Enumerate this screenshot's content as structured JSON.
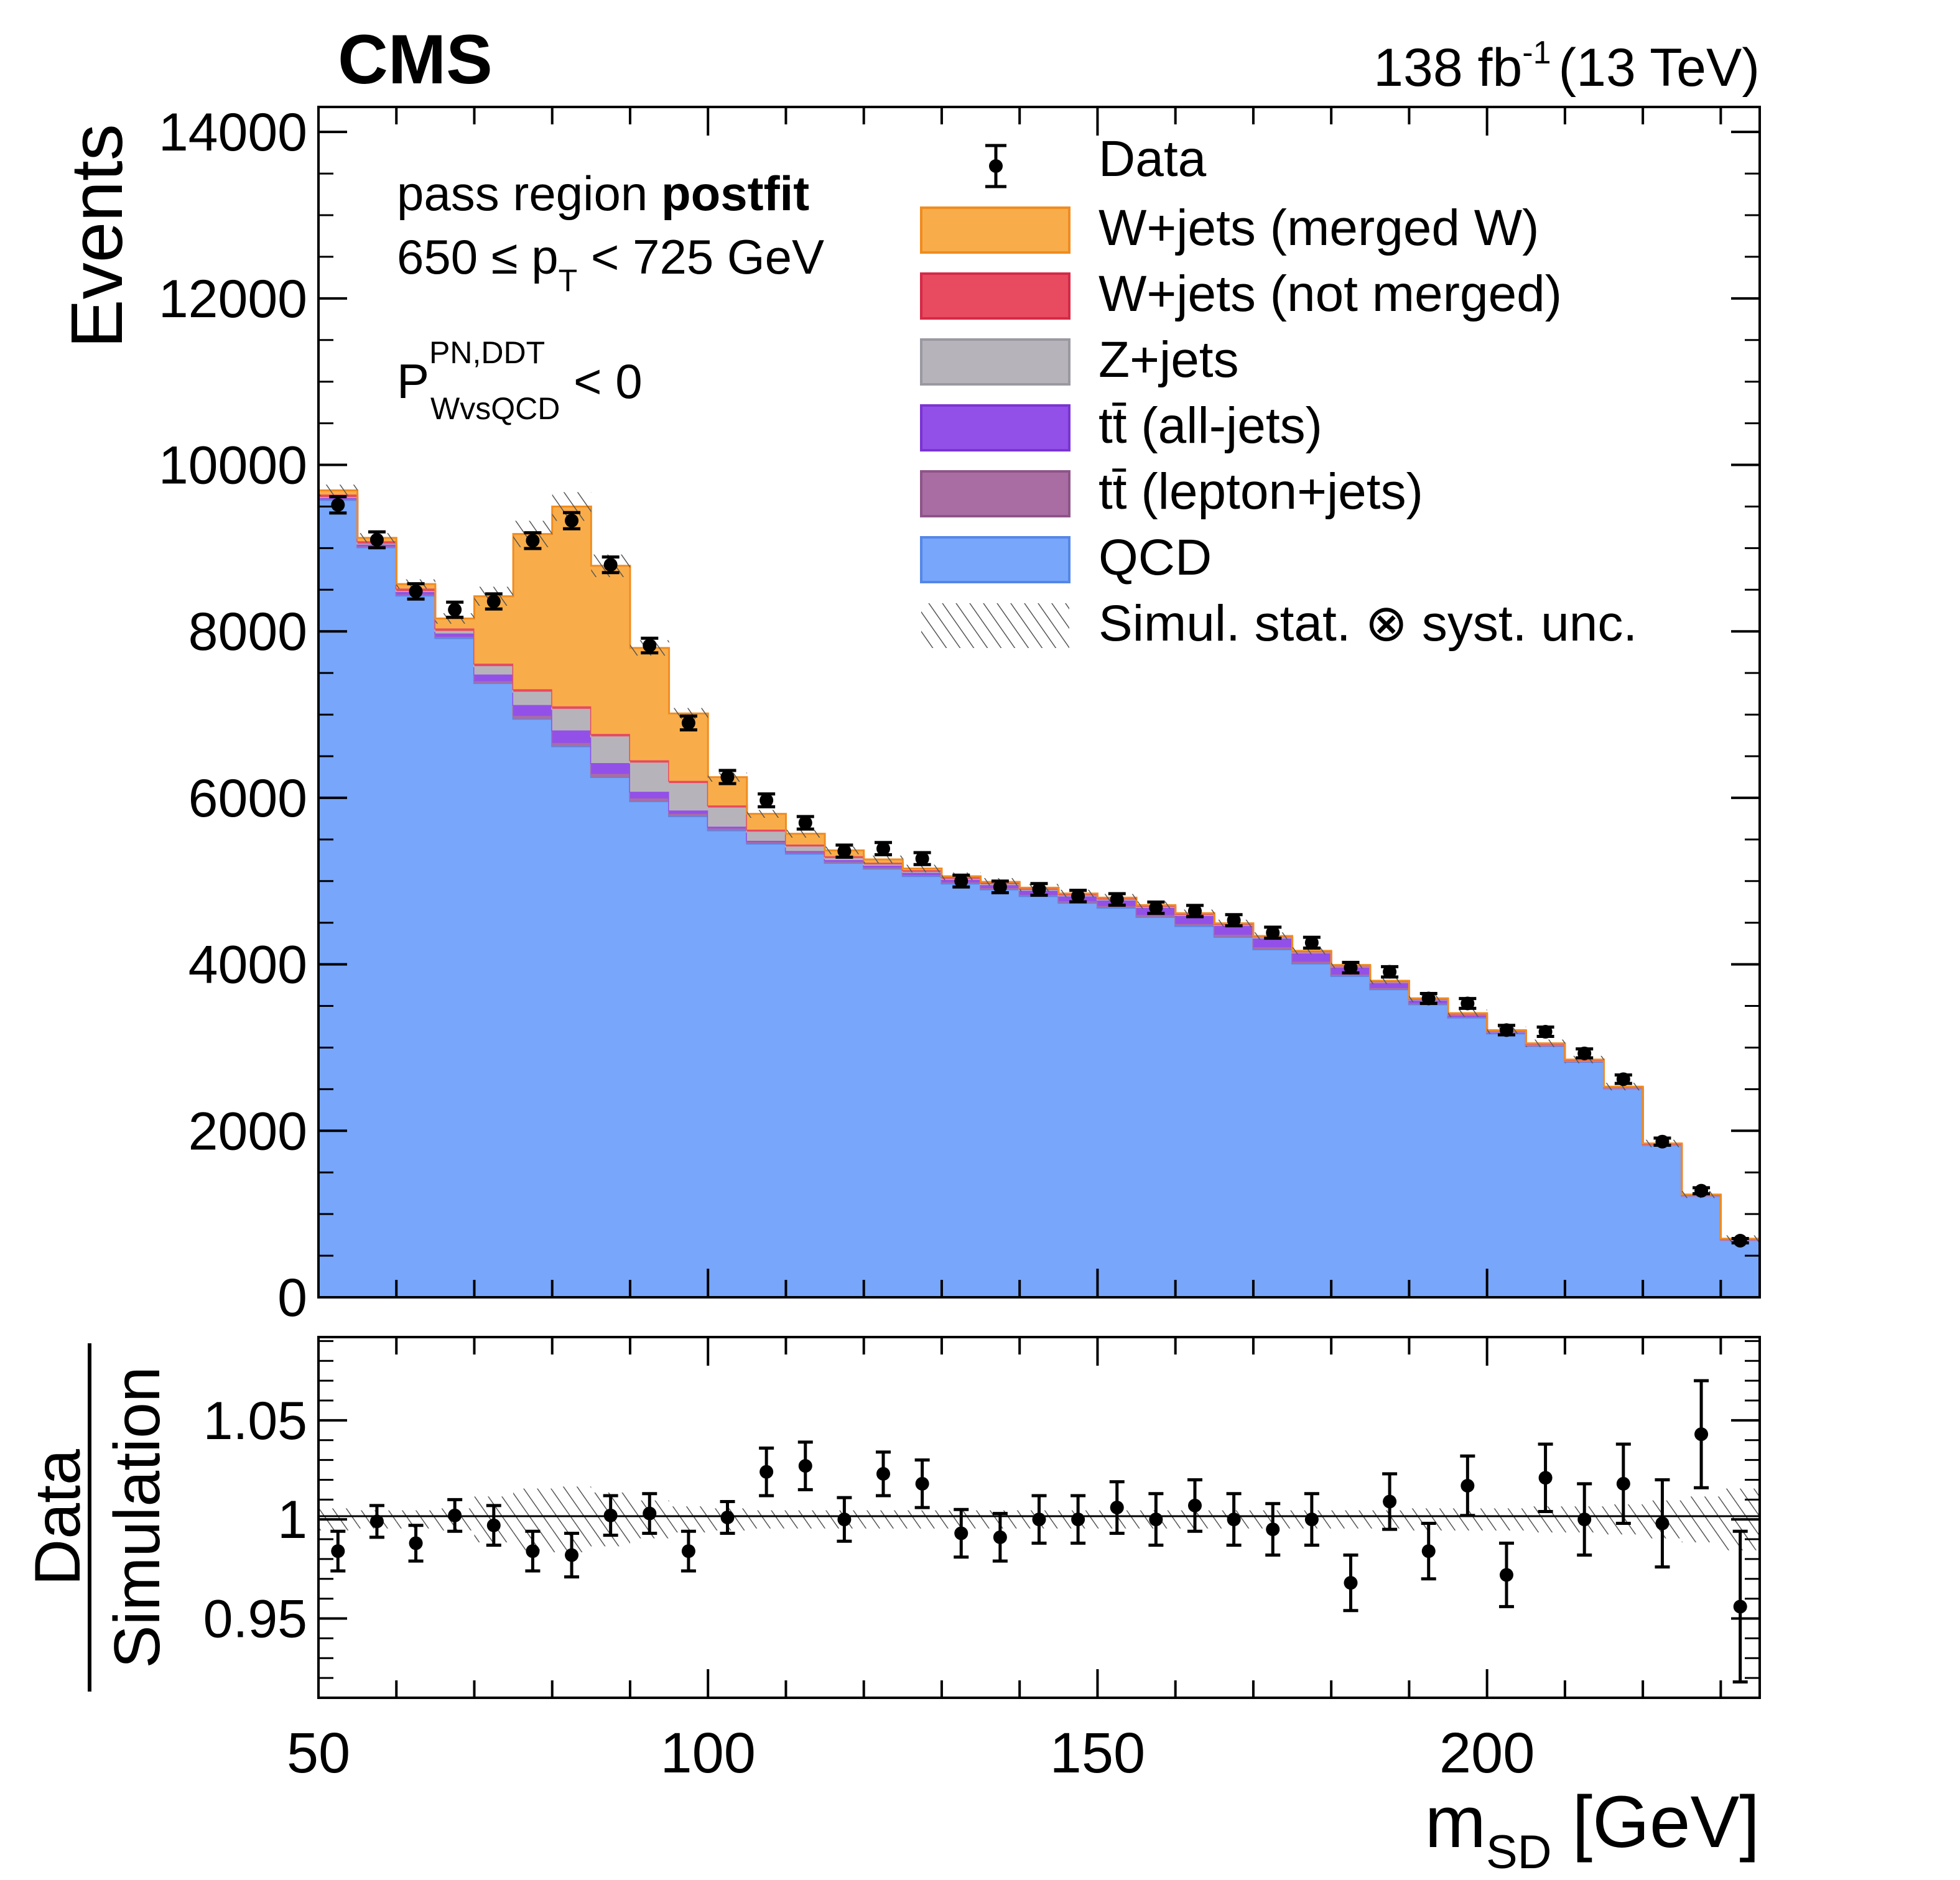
{
  "header": {
    "experiment": "CMS",
    "lumi_value": "138 fb",
    "lumi_exp": "-1",
    "energy": "(13 TeV)"
  },
  "annotations": {
    "region_prefix": "pass region ",
    "region_bold": "postfit",
    "pt_a": "650 ≤ p",
    "pt_sub": "T",
    "pt_b": " < 725 GeV",
    "tagger_main": "P",
    "tagger_sup": "PN,DDT",
    "tagger_sub": "WvsQCD",
    "tagger_cut": " < 0"
  },
  "colors": {
    "qcd": "#77a6fb",
    "qcd_edge": "#5587e6",
    "tt_lep": "#a96da3",
    "tt_had": "#9350e8",
    "zjets": "#b6b4ba",
    "w_unmerged": "#e84a5f",
    "w_merged": "#f8ad4a",
    "w_merged_edge": "#f08c20"
  },
  "chart_data": [
    {
      "type": "bar",
      "stacked": true,
      "title": "",
      "ylabel": "Events",
      "xlabel": "",
      "xlim": [
        50,
        235
      ],
      "ylim": [
        0,
        14300
      ],
      "yticks": [
        0,
        2000,
        4000,
        6000,
        8000,
        10000,
        12000,
        14000
      ],
      "ytick_labels": [
        "0",
        "2000",
        "4000",
        "6000",
        "8000",
        "10000",
        "12000",
        "14000"
      ],
      "bin_edges": [
        50,
        55,
        60,
        65,
        70,
        75,
        80,
        85,
        90,
        95,
        100,
        105,
        110,
        115,
        120,
        125,
        130,
        135,
        140,
        145,
        150,
        155,
        160,
        165,
        170,
        175,
        180,
        185,
        190,
        195,
        200,
        205,
        210,
        215,
        220,
        225,
        230,
        235
      ],
      "series": [
        {
          "name": "QCD",
          "color_key": "qcd",
          "values": [
            9580,
            9010,
            8430,
            7920,
            7380,
            6950,
            6620,
            6250,
            5960,
            5780,
            5610,
            5450,
            5330,
            5220,
            5150,
            5060,
            4970,
            4900,
            4820,
            4740,
            4680,
            4570,
            4460,
            4330,
            4180,
            4010,
            3860,
            3700,
            3520,
            3360,
            3170,
            3020,
            2830,
            2510,
            1830,
            1220,
            690
          ]
        },
        {
          "name": "tt̄ (lepton+jets)",
          "color_key": "tt_lep",
          "values": [
            8,
            10,
            12,
            15,
            22,
            35,
            40,
            38,
            33,
            28,
            22,
            18,
            15,
            14,
            13,
            13,
            14,
            15,
            16,
            18,
            20,
            22,
            25,
            26,
            25,
            22,
            18,
            15,
            10,
            8,
            6,
            5,
            4,
            3,
            2,
            1,
            1
          ]
        },
        {
          "name": "tt̄ (all-jets)",
          "color_key": "tt_had",
          "values": [
            20,
            25,
            30,
            40,
            80,
            130,
            150,
            130,
            80,
            40,
            22,
            16,
            16,
            18,
            22,
            28,
            35,
            42,
            55,
            65,
            75,
            95,
            105,
            115,
            115,
            110,
            95,
            70,
            45,
            30,
            18,
            12,
            8,
            5,
            3,
            2,
            1
          ]
        },
        {
          "name": "Z+jets",
          "color_key": "zjets",
          "values": [
            6,
            8,
            12,
            30,
            100,
            160,
            260,
            320,
            350,
            330,
            230,
            110,
            55,
            25,
            15,
            10,
            8,
            6,
            5,
            4,
            3,
            3,
            3,
            2,
            2,
            2,
            2,
            2,
            2,
            1,
            1,
            1,
            1,
            1,
            1,
            1,
            1
          ]
        },
        {
          "name": "W+jets (not merged)",
          "color_key": "w_unmerged",
          "values": [
            30,
            30,
            30,
            30,
            30,
            30,
            30,
            30,
            28,
            26,
            25,
            24,
            23,
            22,
            21,
            20,
            19,
            18,
            17,
            16,
            15,
            14,
            13,
            12,
            11,
            10,
            9,
            8,
            7,
            6,
            6,
            5,
            5,
            4,
            4,
            3,
            3
          ]
        },
        {
          "name": "W+jets (merged W)",
          "color_key": "w_merged",
          "values": [
            50,
            40,
            55,
            120,
            810,
            1865,
            2400,
            2020,
            1350,
            810,
            340,
            190,
            130,
            70,
            40,
            20,
            12,
            10,
            8,
            8,
            8,
            8,
            8,
            8,
            8,
            8,
            8,
            8,
            8,
            8,
            8,
            8,
            8,
            8,
            8,
            8,
            8
          ]
        }
      ],
      "data": {
        "name": "Data",
        "values": [
          9520,
          9100,
          8480,
          8260,
          8360,
          9090,
          9330,
          8800,
          7830,
          6900,
          6250,
          5970,
          5700,
          5360,
          5390,
          5270,
          5000,
          4930,
          4900,
          4820,
          4780,
          4680,
          4640,
          4530,
          4380,
          4260,
          3960,
          3910,
          3590,
          3530,
          3210,
          3190,
          2930,
          2620,
          1870,
          1280,
          680
        ],
        "errors": [
          98,
          95,
          92,
          91,
          91,
          95,
          97,
          94,
          88,
          83,
          79,
          77,
          75,
          73,
          73,
          72,
          71,
          70,
          70,
          69,
          69,
          68,
          68,
          67,
          66,
          65,
          63,
          62,
          60,
          59,
          57,
          56,
          54,
          51,
          43,
          36,
          26
        ]
      },
      "legend": {
        "position": "top-right",
        "entries": [
          "Data",
          "W+jets (merged W)",
          "W+jets (not merged)",
          "Z+jets",
          "tt̄ (all-jets)",
          "tt̄ (lepton+jets)",
          "QCD",
          "Simul. stat. ⊗ syst. unc."
        ]
      }
    },
    {
      "type": "scatter",
      "ylabel_num": "Data",
      "ylabel_den": "Simulation",
      "xlabel_main": "m",
      "xlabel_sub": "SD",
      "xlabel_unit": " [GeV]",
      "xlim": [
        50,
        235
      ],
      "ylim": [
        0.91,
        1.092
      ],
      "xticks": [
        50,
        100,
        150,
        200
      ],
      "xtick_labels": [
        "50",
        "100",
        "150",
        "200"
      ],
      "yticks": [
        0.95,
        1.0,
        1.05
      ],
      "ytick_labels": [
        "0.95",
        "1",
        "1.05"
      ],
      "x": [
        52.5,
        57.5,
        62.5,
        67.5,
        72.5,
        77.5,
        82.5,
        87.5,
        92.5,
        97.5,
        102.5,
        107.5,
        112.5,
        117.5,
        122.5,
        127.5,
        132.5,
        137.5,
        142.5,
        147.5,
        152.5,
        157.5,
        162.5,
        167.5,
        172.5,
        177.5,
        182.5,
        187.5,
        192.5,
        197.5,
        202.5,
        207.5,
        212.5,
        217.5,
        222.5,
        227.5,
        232.5
      ],
      "ratio": [
        0.984,
        0.999,
        0.988,
        1.002,
        0.997,
        0.984,
        0.982,
        1.002,
        1.003,
        0.984,
        1.001,
        1.024,
        1.027,
        1.0,
        1.023,
        1.018,
        0.993,
        0.991,
        1.0,
        1.0,
        1.006,
        1.0,
        1.007,
        1.0,
        0.995,
        1.0,
        0.968,
        1.009,
        0.984,
        1.017,
        0.972,
        1.021,
        1.0,
        1.018,
        0.998,
        1.043,
        0.956
      ],
      "errors": [
        0.01,
        0.008,
        0.009,
        0.008,
        0.01,
        0.01,
        0.011,
        0.01,
        0.01,
        0.01,
        0.008,
        0.012,
        0.012,
        0.011,
        0.011,
        0.012,
        0.012,
        0.012,
        0.012,
        0.012,
        0.013,
        0.013,
        0.013,
        0.013,
        0.013,
        0.013,
        0.014,
        0.014,
        0.014,
        0.015,
        0.016,
        0.017,
        0.018,
        0.02,
        0.022,
        0.027,
        0.038
      ],
      "unc_band": [
        0.004,
        0.003,
        0.003,
        0.004,
        0.01,
        0.014,
        0.015,
        0.012,
        0.008,
        0.005,
        0.004,
        0.003,
        0.003,
        0.003,
        0.003,
        0.003,
        0.003,
        0.003,
        0.003,
        0.003,
        0.003,
        0.003,
        0.003,
        0.003,
        0.003,
        0.003,
        0.003,
        0.003,
        0.004,
        0.004,
        0.004,
        0.005,
        0.005,
        0.006,
        0.008,
        0.01,
        0.014
      ]
    }
  ]
}
